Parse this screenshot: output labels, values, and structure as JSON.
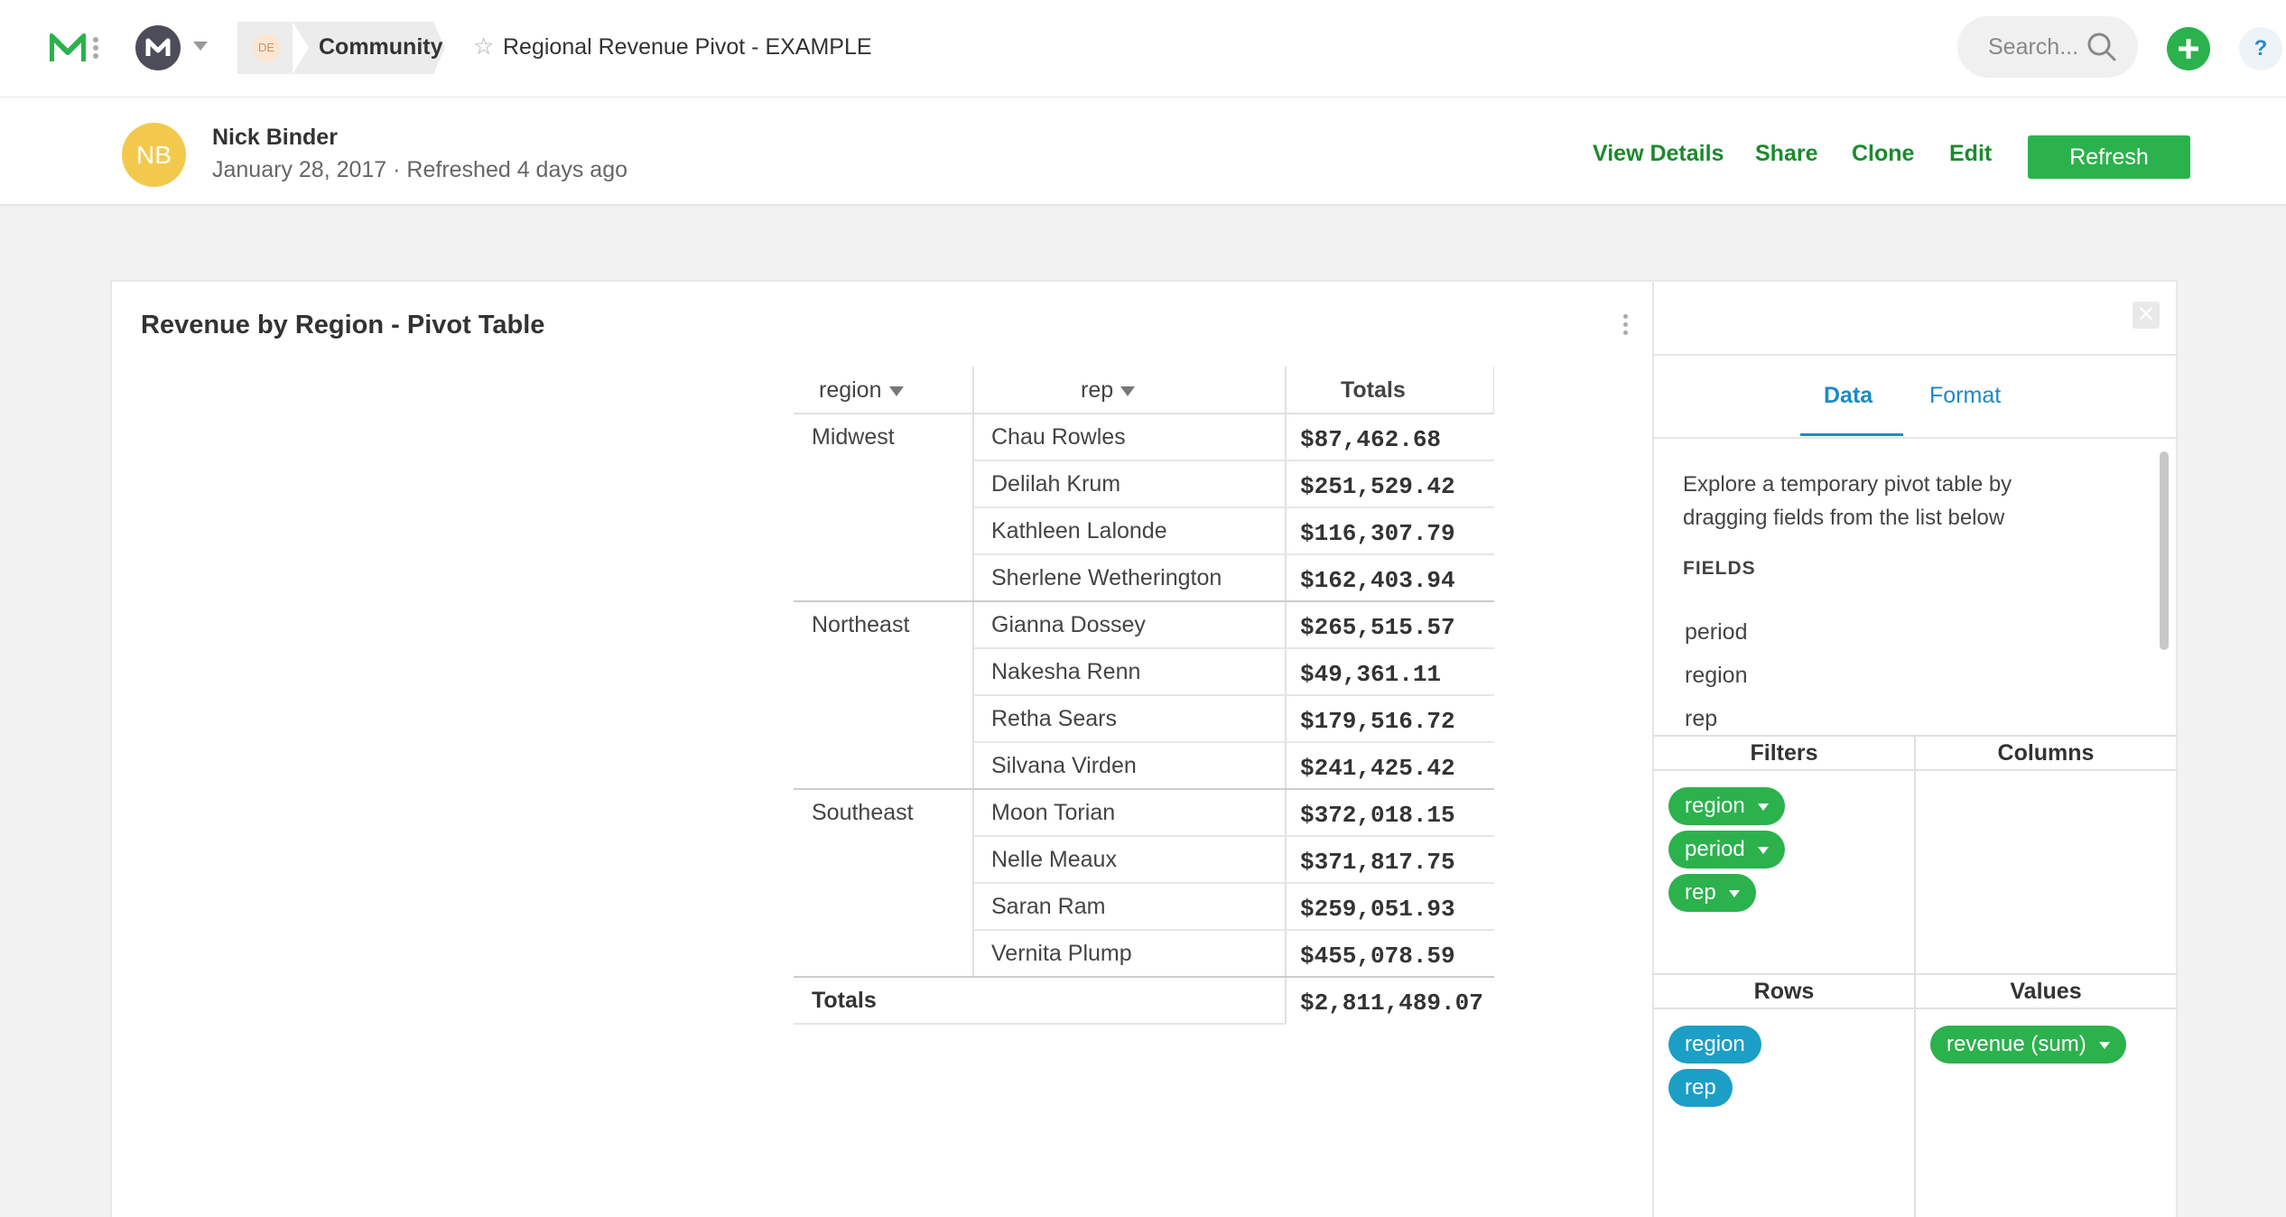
{
  "nav": {
    "workspace_badge": "DE",
    "breadcrumb": "Community",
    "report_title": "Regional Revenue Pivot - EXAMPLE",
    "search_placeholder": "Search...",
    "help": "?"
  },
  "header": {
    "avatar_initials": "NB",
    "author": "Nick Binder",
    "meta": "January 28, 2017 · Refreshed 4 days ago",
    "links": [
      "View Details",
      "Share",
      "Clone",
      "Edit"
    ],
    "refresh": "Refresh"
  },
  "card": {
    "title": "Revenue by Region - Pivot Table",
    "pivot": {
      "headers": {
        "region": "region",
        "rep": "rep",
        "totals": "Totals"
      },
      "groups": [
        {
          "region": "Midwest",
          "rows": [
            {
              "rep": "Chau Rowles",
              "total": "$87,462.68"
            },
            {
              "rep": "Delilah Krum",
              "total": "$251,529.42"
            },
            {
              "rep": "Kathleen Lalonde",
              "total": "$116,307.79"
            },
            {
              "rep": "Sherlene Wetherington",
              "total": "$162,403.94"
            }
          ]
        },
        {
          "region": "Northeast",
          "rows": [
            {
              "rep": "Gianna Dossey",
              "total": "$265,515.57"
            },
            {
              "rep": "Nakesha Renn",
              "total": "$49,361.11"
            },
            {
              "rep": "Retha Sears",
              "total": "$179,516.72"
            },
            {
              "rep": "Silvana Virden",
              "total": "$241,425.42"
            }
          ]
        },
        {
          "region": "Southeast",
          "rows": [
            {
              "rep": "Moon Torian",
              "total": "$372,018.15"
            },
            {
              "rep": "Nelle Meaux",
              "total": "$371,817.75"
            },
            {
              "rep": "Saran Ram",
              "total": "$259,051.93"
            },
            {
              "rep": "Vernita Plump",
              "total": "$455,078.59"
            }
          ]
        }
      ],
      "grand_total_label": "Totals",
      "grand_total": "$2,811,489.07"
    }
  },
  "panel": {
    "tabs": [
      "Data",
      "Format"
    ],
    "active_tab": "Data",
    "intro": "Explore a temporary pivot table by dragging fields from the list below",
    "fields_label": "FIELDS",
    "fields": [
      "period",
      "region",
      "rep"
    ],
    "zones": {
      "filters": {
        "title": "Filters",
        "pills": [
          "region",
          "period",
          "rep"
        ]
      },
      "columns": {
        "title": "Columns",
        "pills": []
      },
      "rows": {
        "title": "Rows",
        "pills": [
          "region",
          "rep"
        ]
      },
      "values": {
        "title": "Values",
        "pills": [
          "revenue (sum)"
        ]
      }
    }
  },
  "colors": {
    "accent_green": "#2bb24c",
    "link_green": "#1b8a2e",
    "accent_blue": "#1c9fc6",
    "avatar_yellow": "#f2c94c"
  }
}
